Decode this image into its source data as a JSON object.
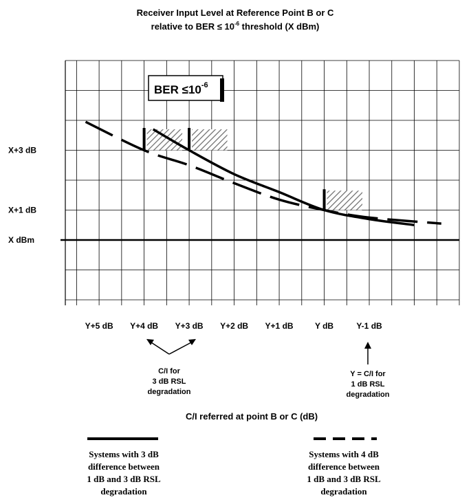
{
  "chart_data": {
    "type": "line",
    "title_line1": "Receiver Input Level at Reference Point B or C",
    "title_line2_prefix": "relative to BER ≤ 10",
    "title_line2_exp": "-6",
    "title_line2_suffix": " threshold (X dBm)",
    "ber_box": {
      "prefix": "BER ≤10",
      "exp": "-6"
    },
    "xlabel": "C/I referred at point B or C (dB)",
    "x_ticks": [
      {
        "label": "Y+5 dB",
        "x": 5
      },
      {
        "label": "Y+4 dB",
        "x": 4
      },
      {
        "label": "Y+3 dB",
        "x": 3
      },
      {
        "label": "Y+2 dB",
        "x": 2
      },
      {
        "label": "Y+1 dB",
        "x": 1
      },
      {
        "label": "Y dB",
        "x": 0
      },
      {
        "label": "Y-1 dB",
        "x": -1
      }
    ],
    "y_ticks": [
      {
        "label": "X+3 dB",
        "y": 3
      },
      {
        "label": "X+1 dB",
        "y": 1
      },
      {
        "label": "X dBm",
        "y": 0
      }
    ],
    "xlim": [
      5.75,
      -3.0
    ],
    "ylim": [
      -2.0,
      6.0
    ],
    "grid": true,
    "series": [
      {
        "name": "Systems with 3 dB difference between 1 dB and 3 dB RSL degradation",
        "style": "solid",
        "points": [
          [
            3.8,
            3.7
          ],
          [
            3.0,
            3.0
          ],
          [
            2.0,
            2.2
          ],
          [
            1.0,
            1.6
          ],
          [
            0.0,
            1.0
          ],
          [
            -1.0,
            0.7
          ],
          [
            -2.0,
            0.5
          ]
        ]
      },
      {
        "name": "Systems with 4 dB difference between 1 dB and 3 dB RSL degradation",
        "style": "dashed",
        "points": [
          [
            5.3,
            3.95
          ],
          [
            4.0,
            3.0
          ],
          [
            3.0,
            2.5
          ],
          [
            2.0,
            1.9
          ],
          [
            1.0,
            1.35
          ],
          [
            0.0,
            1.0
          ],
          [
            -1.0,
            0.75
          ],
          [
            -2.6,
            0.55
          ]
        ]
      }
    ],
    "markers": [
      {
        "x": 4.0,
        "y": 3.0,
        "height": 0.7,
        "width": 1.0
      },
      {
        "x": 3.0,
        "y": 3.0,
        "height": 0.7,
        "width": 1.0
      },
      {
        "x": 0.0,
        "y": 1.0,
        "height": 0.65,
        "width": 1.0
      }
    ],
    "annotations": {
      "ci_3db": [
        "C/I for",
        "3 dB RSL",
        "degradation"
      ],
      "ci_1db": [
        "Y = C/I for",
        "1 dB RSL",
        "degradation"
      ]
    }
  }
}
